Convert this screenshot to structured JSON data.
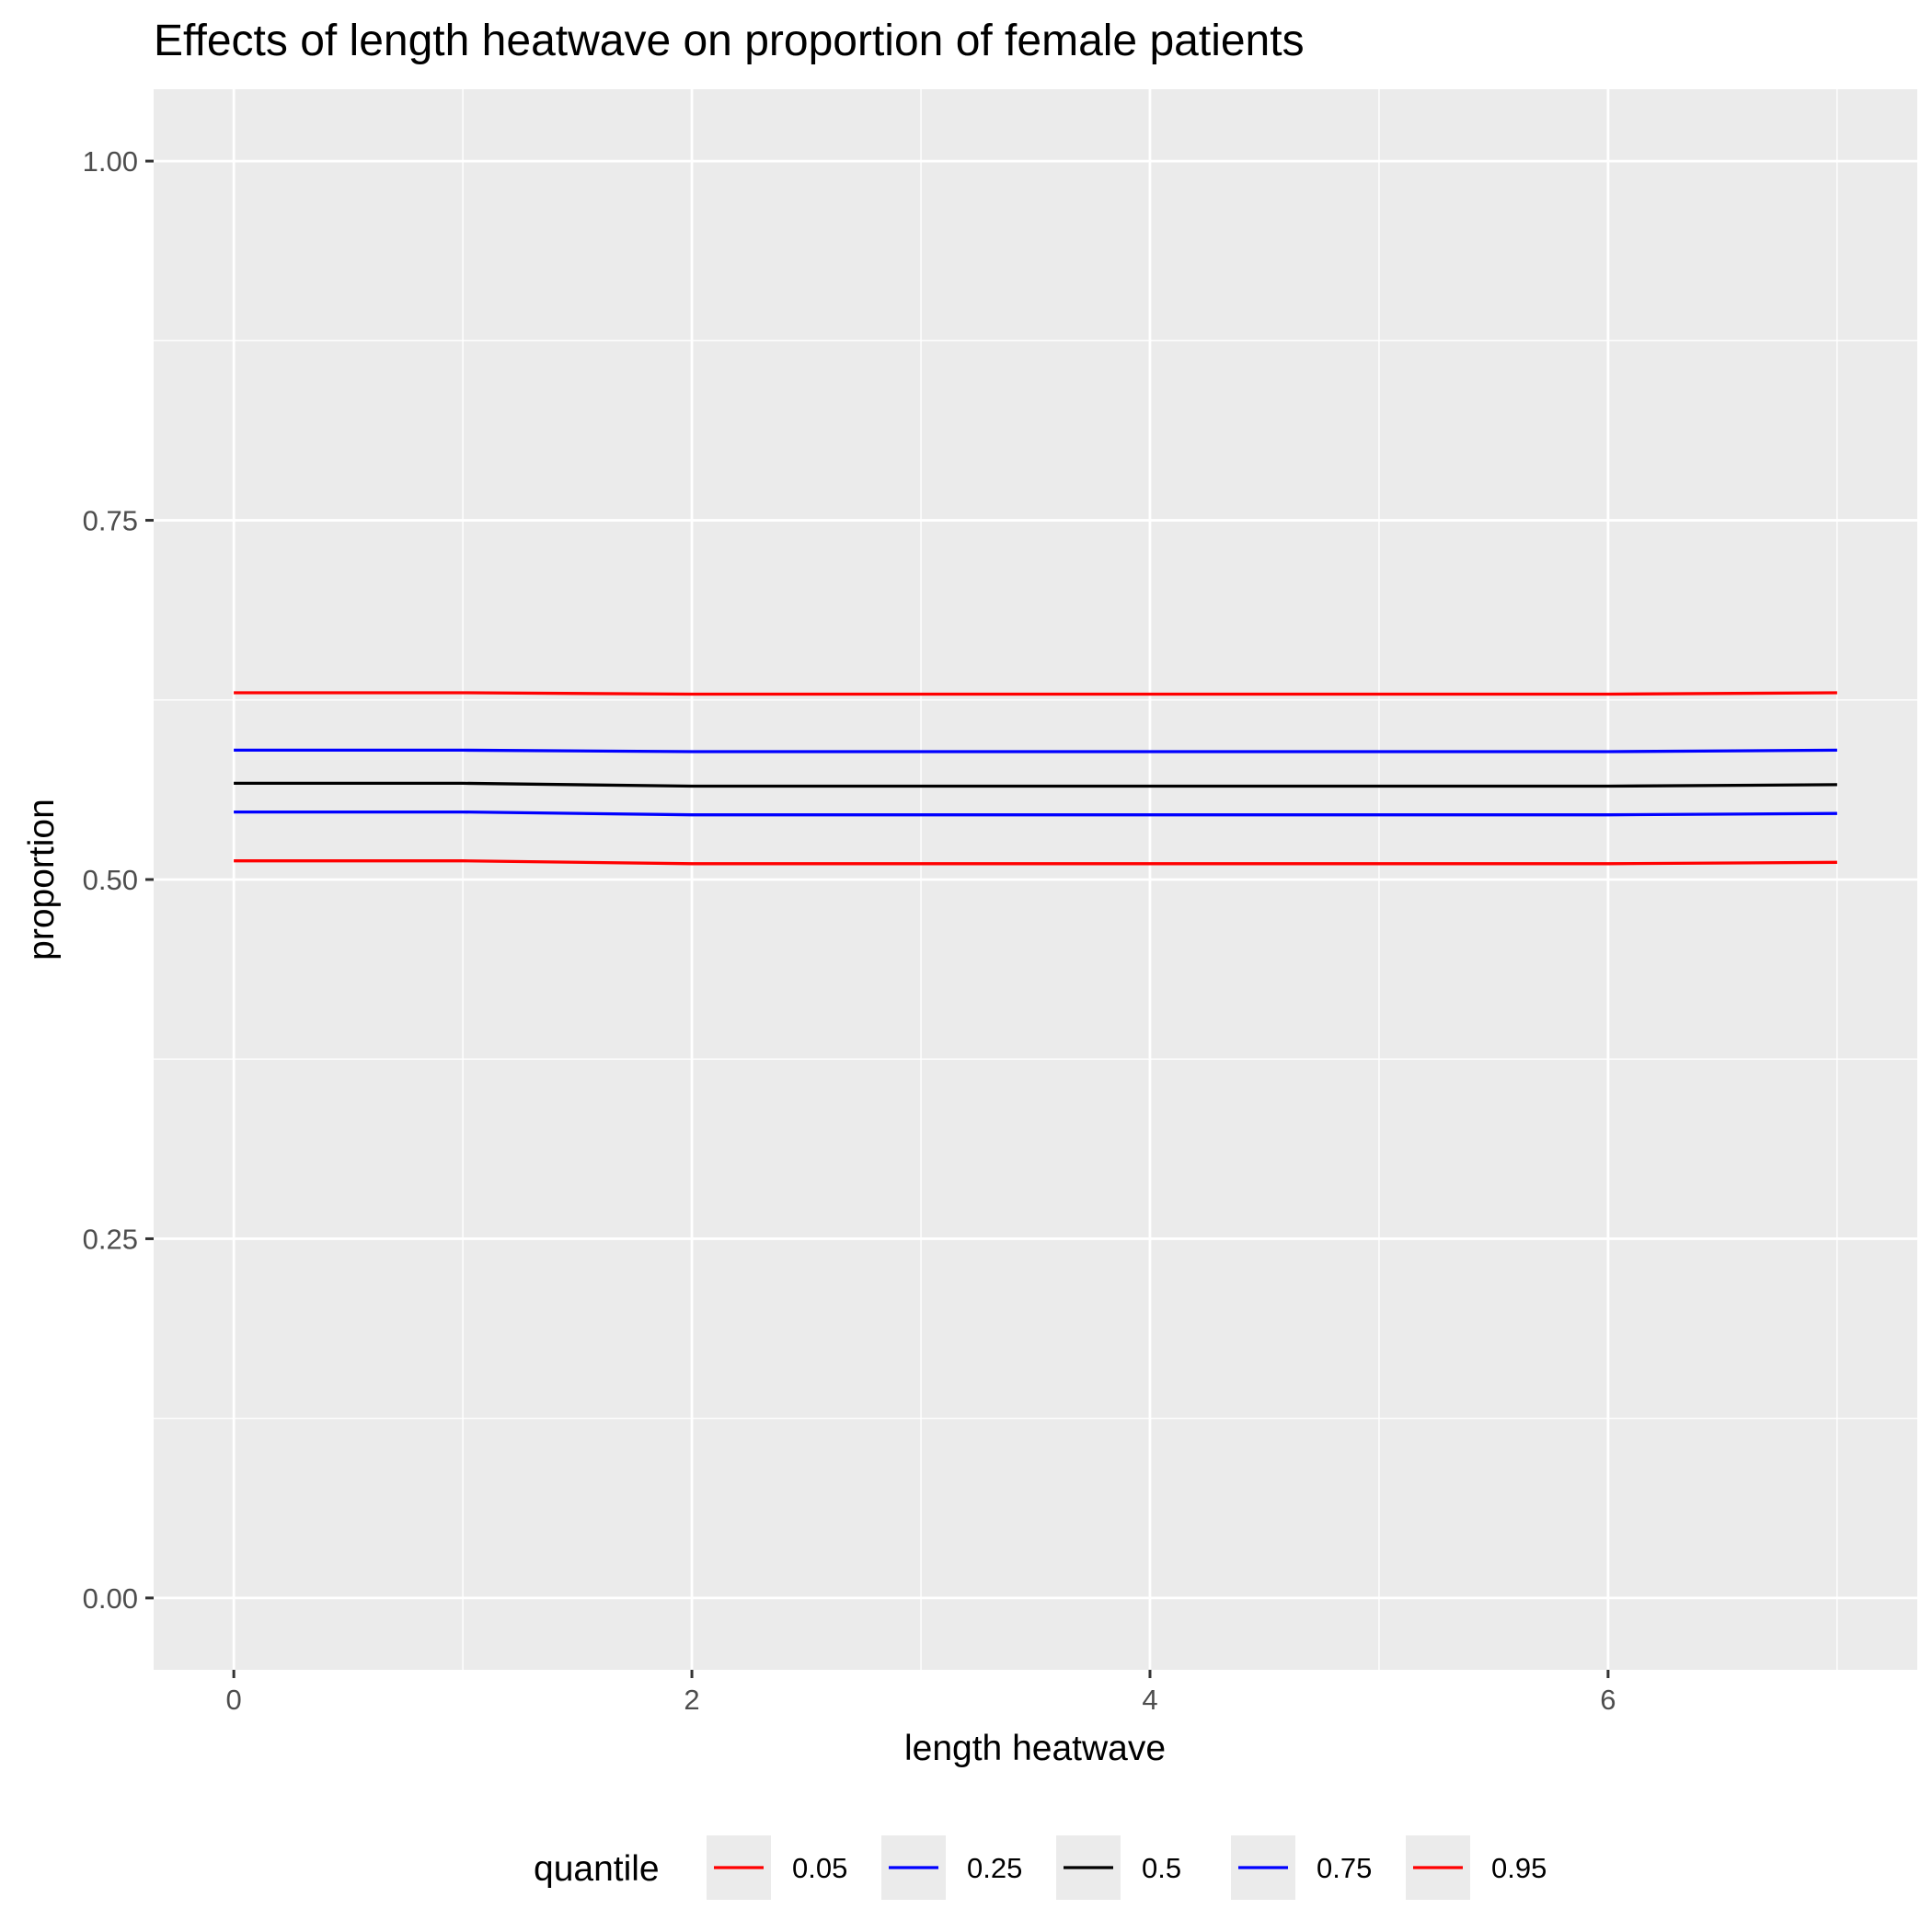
{
  "chart_data": {
    "type": "line",
    "title": "Effects of length heatwave on proportion of female patients",
    "xlabel": "length heatwave",
    "ylabel": "proportion",
    "xlim": [
      -0.35,
      7.35
    ],
    "ylim": [
      -0.05,
      1.05
    ],
    "x_ticks": [
      0,
      2,
      4,
      6
    ],
    "x_tick_labels": [
      "0",
      "2",
      "4",
      "6"
    ],
    "x_minor_ticks": [
      1,
      3,
      5,
      7
    ],
    "y_ticks": [
      0,
      0.25,
      0.5,
      0.75,
      1
    ],
    "y_tick_labels": [
      "0.00",
      "0.25",
      "0.50",
      "0.75",
      "1.00"
    ],
    "y_minor_ticks": [
      0.125,
      0.375,
      0.625,
      0.875
    ],
    "grid": true,
    "legend_position": "bottom",
    "legend_title": "quantile",
    "x": [
      0,
      1,
      2,
      3,
      4,
      5,
      6,
      7
    ],
    "series": [
      {
        "name": "0.05",
        "color": "#ff0000",
        "values": [
          0.513,
          0.513,
          0.511,
          0.511,
          0.511,
          0.511,
          0.511,
          0.512
        ]
      },
      {
        "name": "0.25",
        "color": "#0000ff",
        "values": [
          0.547,
          0.547,
          0.545,
          0.545,
          0.545,
          0.545,
          0.545,
          0.546
        ]
      },
      {
        "name": "0.5",
        "color": "#000000",
        "values": [
          0.567,
          0.567,
          0.565,
          0.565,
          0.565,
          0.565,
          0.565,
          0.566
        ]
      },
      {
        "name": "0.75",
        "color": "#0000ff",
        "values": [
          0.59,
          0.59,
          0.589,
          0.589,
          0.589,
          0.589,
          0.589,
          0.59
        ]
      },
      {
        "name": "0.95",
        "color": "#ff0000",
        "values": [
          0.63,
          0.63,
          0.629,
          0.629,
          0.629,
          0.629,
          0.629,
          0.63
        ]
      }
    ]
  }
}
